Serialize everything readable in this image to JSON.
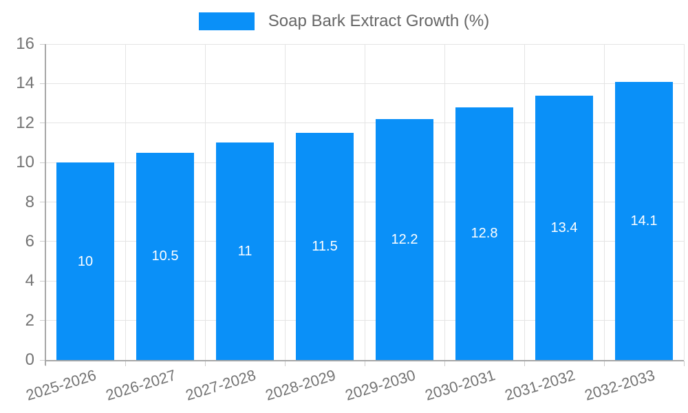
{
  "legend": {
    "label": "Soap Bark Extract Growth (%)"
  },
  "chart_data": {
    "type": "bar",
    "title": "",
    "xlabel": "",
    "ylabel": "",
    "categories": [
      "2025-2026",
      "2026-2027",
      "2027-2028",
      "2028-2029",
      "2029-2030",
      "2030-2031",
      "2031-2032",
      "2032-2033"
    ],
    "values": [
      10,
      10.5,
      11,
      11.5,
      12.2,
      12.8,
      13.4,
      14.1
    ],
    "series_name": "Soap Bark Extract Growth (%)",
    "ylim": [
      0,
      16
    ],
    "yticks": [
      0,
      2,
      4,
      6,
      8,
      10,
      12,
      14,
      16
    ],
    "grid": true,
    "legend_position": "top-center",
    "value_labels_inside_bars": true,
    "x_label_rotation_deg": -17,
    "colors": {
      "bar": "#0a90f8",
      "grid": "#e4e4e4",
      "axis": "#a6a6a6",
      "tick": "#cccccc",
      "axis_label": "#737373",
      "value_label": "#ffffff",
      "legend_text": "#666666"
    }
  }
}
